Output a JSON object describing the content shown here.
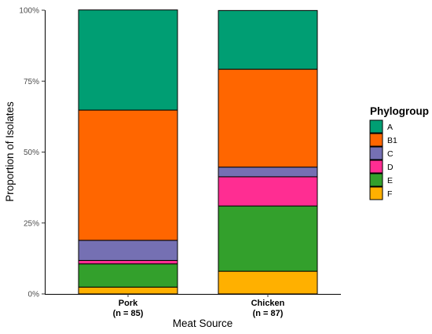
{
  "chart_data": {
    "type": "bar",
    "stacked": true,
    "categories": [
      "Pork",
      "Chicken"
    ],
    "category_labels": [
      {
        "name": "Pork",
        "n": "(n = 85)"
      },
      {
        "name": "Chicken",
        "n": "(n = 87)"
      }
    ],
    "series": [
      {
        "name": "A",
        "color": "#009E73",
        "values": [
          35.3,
          20.7
        ]
      },
      {
        "name": "B1",
        "color": "#FF6600",
        "values": [
          45.9,
          34.5
        ]
      },
      {
        "name": "C",
        "color": "#7570B3",
        "values": [
          7.1,
          3.4
        ]
      },
      {
        "name": "D",
        "color": "#FF2D92",
        "values": [
          1.2,
          10.3
        ]
      },
      {
        "name": "E",
        "color": "#33A02C",
        "values": [
          8.2,
          23.0
        ]
      },
      {
        "name": "F",
        "color": "#FFB000",
        "values": [
          2.4,
          8.0
        ]
      }
    ],
    "stack_order_bottom_to_top": [
      "F",
      "E",
      "D",
      "C",
      "B1",
      "A"
    ],
    "ylim": [
      0,
      100
    ],
    "yticks": [
      0,
      25,
      50,
      75,
      100
    ],
    "ytick_labels": [
      "0%",
      "25%",
      "50%",
      "75%",
      "100%"
    ],
    "xlabel": "Meat Source",
    "ylabel": "Proportion of Isolates",
    "legend_title": "Phylogroup",
    "legend_position": "right",
    "grid": false
  }
}
